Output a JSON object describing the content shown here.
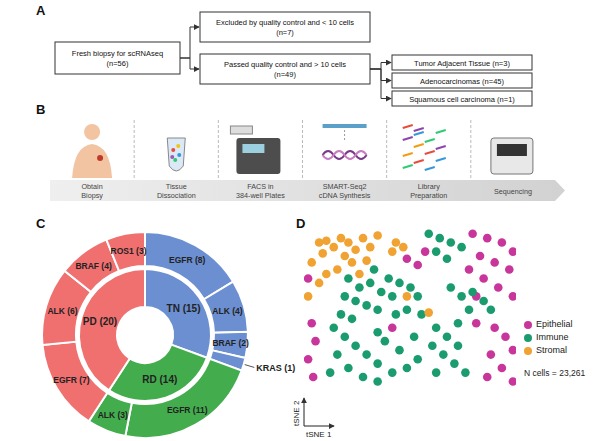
{
  "panels": [
    {
      "panel": "A",
      "type": "flowchart",
      "nodes": [
        {
          "lines": [
            "Fresh biopsy for scRNAseq",
            "(n=56)"
          ]
        },
        {
          "lines": [
            "Excluded by quality control and < 10 cells",
            "(n=7)"
          ]
        },
        {
          "lines": [
            "Passed quality control and > 10 cells",
            "(n=49)"
          ]
        },
        {
          "lines": [
            "Tumor Adjacent Tissue (n=3)"
          ]
        },
        {
          "lines": [
            "Adenocarcinomas (n=45)"
          ]
        },
        {
          "lines": [
            "Squamous cell carcinoma (n=1)"
          ]
        }
      ],
      "edges": [
        [
          0,
          1
        ],
        [
          0,
          2
        ],
        [
          2,
          3
        ],
        [
          2,
          4
        ],
        [
          2,
          5
        ]
      ]
    },
    {
      "panel": "B",
      "type": "workflow",
      "steps": [
        [
          "Obtain",
          "Biopsy"
        ],
        [
          "Tissue",
          "Dissociation"
        ],
        [
          "FACS in",
          "384-well Plates"
        ],
        [
          "SMART-Seq2",
          "cDNA Synthesis"
        ],
        [
          "Library",
          "Preparation"
        ],
        [
          "Sequencing"
        ]
      ]
    }
  ],
  "chart_data": [
    {
      "panel": "C",
      "type": "sunburst",
      "data_labels": true,
      "inner": {
        "categories": [
          "TN",
          "RD",
          "PD"
        ],
        "values": [
          15,
          14,
          20
        ],
        "value_labels": [
          "TN (15)",
          "RD (14)",
          "PD (20)"
        ],
        "colors": [
          "#6b8fd1",
          "#43ad4e",
          "#f07070"
        ]
      },
      "outer": {
        "parents": [
          "TN",
          "TN",
          "TN",
          "TN",
          "RD",
          "RD",
          "PD",
          "PD",
          "PD",
          "PD"
        ],
        "values": [
          8,
          4,
          2,
          1,
          11,
          3,
          7,
          6,
          4,
          3
        ],
        "value_labels": [
          "EGFR (8)",
          "ALK (4)",
          "BRAF (2)",
          "KRAS (1)",
          "EGFR (11)",
          "ALK (3)",
          "EGFR (7)",
          "ALK (6)",
          "BRAF (4)",
          "ROS1 (3)"
        ]
      }
    },
    {
      "panel": "D",
      "type": "scatter",
      "x_label": "tSNE 1",
      "y_label": "tSNE 2",
      "xlim": [
        0,
        100
      ],
      "ylim": [
        0,
        100
      ],
      "tick_labels": false,
      "legend": "right",
      "annotation": "N cells = 23,261",
      "series": [
        {
          "name": "Epithelial",
          "color": "#c8369c",
          "x": [
            79.3,
            86.2,
            93.1,
            98.3,
            82.8,
            89.7,
            96.6,
            77.6,
            84.5,
            91.4,
            98.3,
            81.0,
            48.3,
            53.4,
            56.9,
            1.7,
            3.4,
            5.2,
            1.7,
            4.1,
            89.7,
            94.8,
            98.3,
            87.9,
            93.1,
            98.3,
            86.2,
            41.4,
            81.0
          ],
          "y": [
            95.6,
            92.9,
            90.2,
            84.7,
            82.0,
            78.1,
            73.8,
            73.8,
            68.3,
            62.8,
            57.4,
            57.4,
            80.3,
            76.5,
            84.7,
            68.3,
            41.0,
            30.1,
            19.1,
            8.2,
            38.3,
            32.8,
            24.6,
            21.9,
            13.7,
            5.5,
            8.2,
            38.3,
            41.0
          ]
        },
        {
          "name": "Immune",
          "color": "#1b9c6f",
          "x": [
            20.7,
            25.9,
            31.0,
            36.2,
            24.1,
            29.3,
            34.5,
            19.0,
            39.7,
            32.8,
            44.8,
            50.0,
            53.4,
            48.3,
            43.1,
            55.2,
            13.8,
            19.0,
            24.1,
            29.3,
            34.5,
            41.4,
            48.3,
            53.4,
            15.5,
            20.7,
            27.6,
            34.5,
            44.8,
            37.9,
            51.7,
            12.1,
            62.1,
            67.2,
            72.4,
            65.5,
            70.7,
            75.9,
            62.1,
            60.3,
            58.6,
            63.8,
            69.0,
            74.1,
            62.1,
            67.2,
            69.0,
            74.1,
            79.3,
            84.5,
            87.9,
            77.6,
            34.5,
            22.4,
            41.4,
            72.4,
            17.2
          ],
          "y": [
            68.3,
            62.8,
            65.6,
            60.1,
            54.6,
            51.9,
            49.2,
            57.4,
            68.3,
            73.8,
            65.6,
            62.8,
            57.4,
            49.2,
            46.4,
            46.4,
            38.3,
            32.8,
            27.3,
            21.9,
            16.4,
            10.9,
            13.7,
            19.1,
            21.9,
            13.7,
            8.2,
            5.5,
            24.6,
            30.1,
            32.8,
            10.9,
            38.3,
            32.8,
            27.3,
            21.9,
            16.4,
            10.9,
            10.9,
            27.3,
            95.6,
            92.9,
            90.2,
            87.4,
            84.7,
            80.3,
            62.8,
            57.4,
            60.1,
            54.6,
            49.2,
            49.2,
            35.5,
            43.7,
            57.4,
            41.0,
            46.4
          ]
        },
        {
          "name": "Stromal",
          "color": "#f0a232",
          "x": [
            6.9,
            10.3,
            13.8,
            8.6,
            17.2,
            20.7,
            24.1,
            27.6,
            31.0,
            19.0,
            22.4,
            15.5,
            10.3,
            6.9,
            25.9,
            43.1,
            46.6,
            41.4,
            48.3,
            1.7,
            58.6,
            34.5,
            29.3,
            3.4
          ],
          "y": [
            90.2,
            91.3,
            87.4,
            83.6,
            92.9,
            90.2,
            85.8,
            92.9,
            87.4,
            82.0,
            78.1,
            73.8,
            71.0,
            65.6,
            71.0,
            90.2,
            87.4,
            84.7,
            57.4,
            57.4,
            47.5,
            94.5,
            79.2,
            78.1
          ]
        }
      ]
    }
  ]
}
